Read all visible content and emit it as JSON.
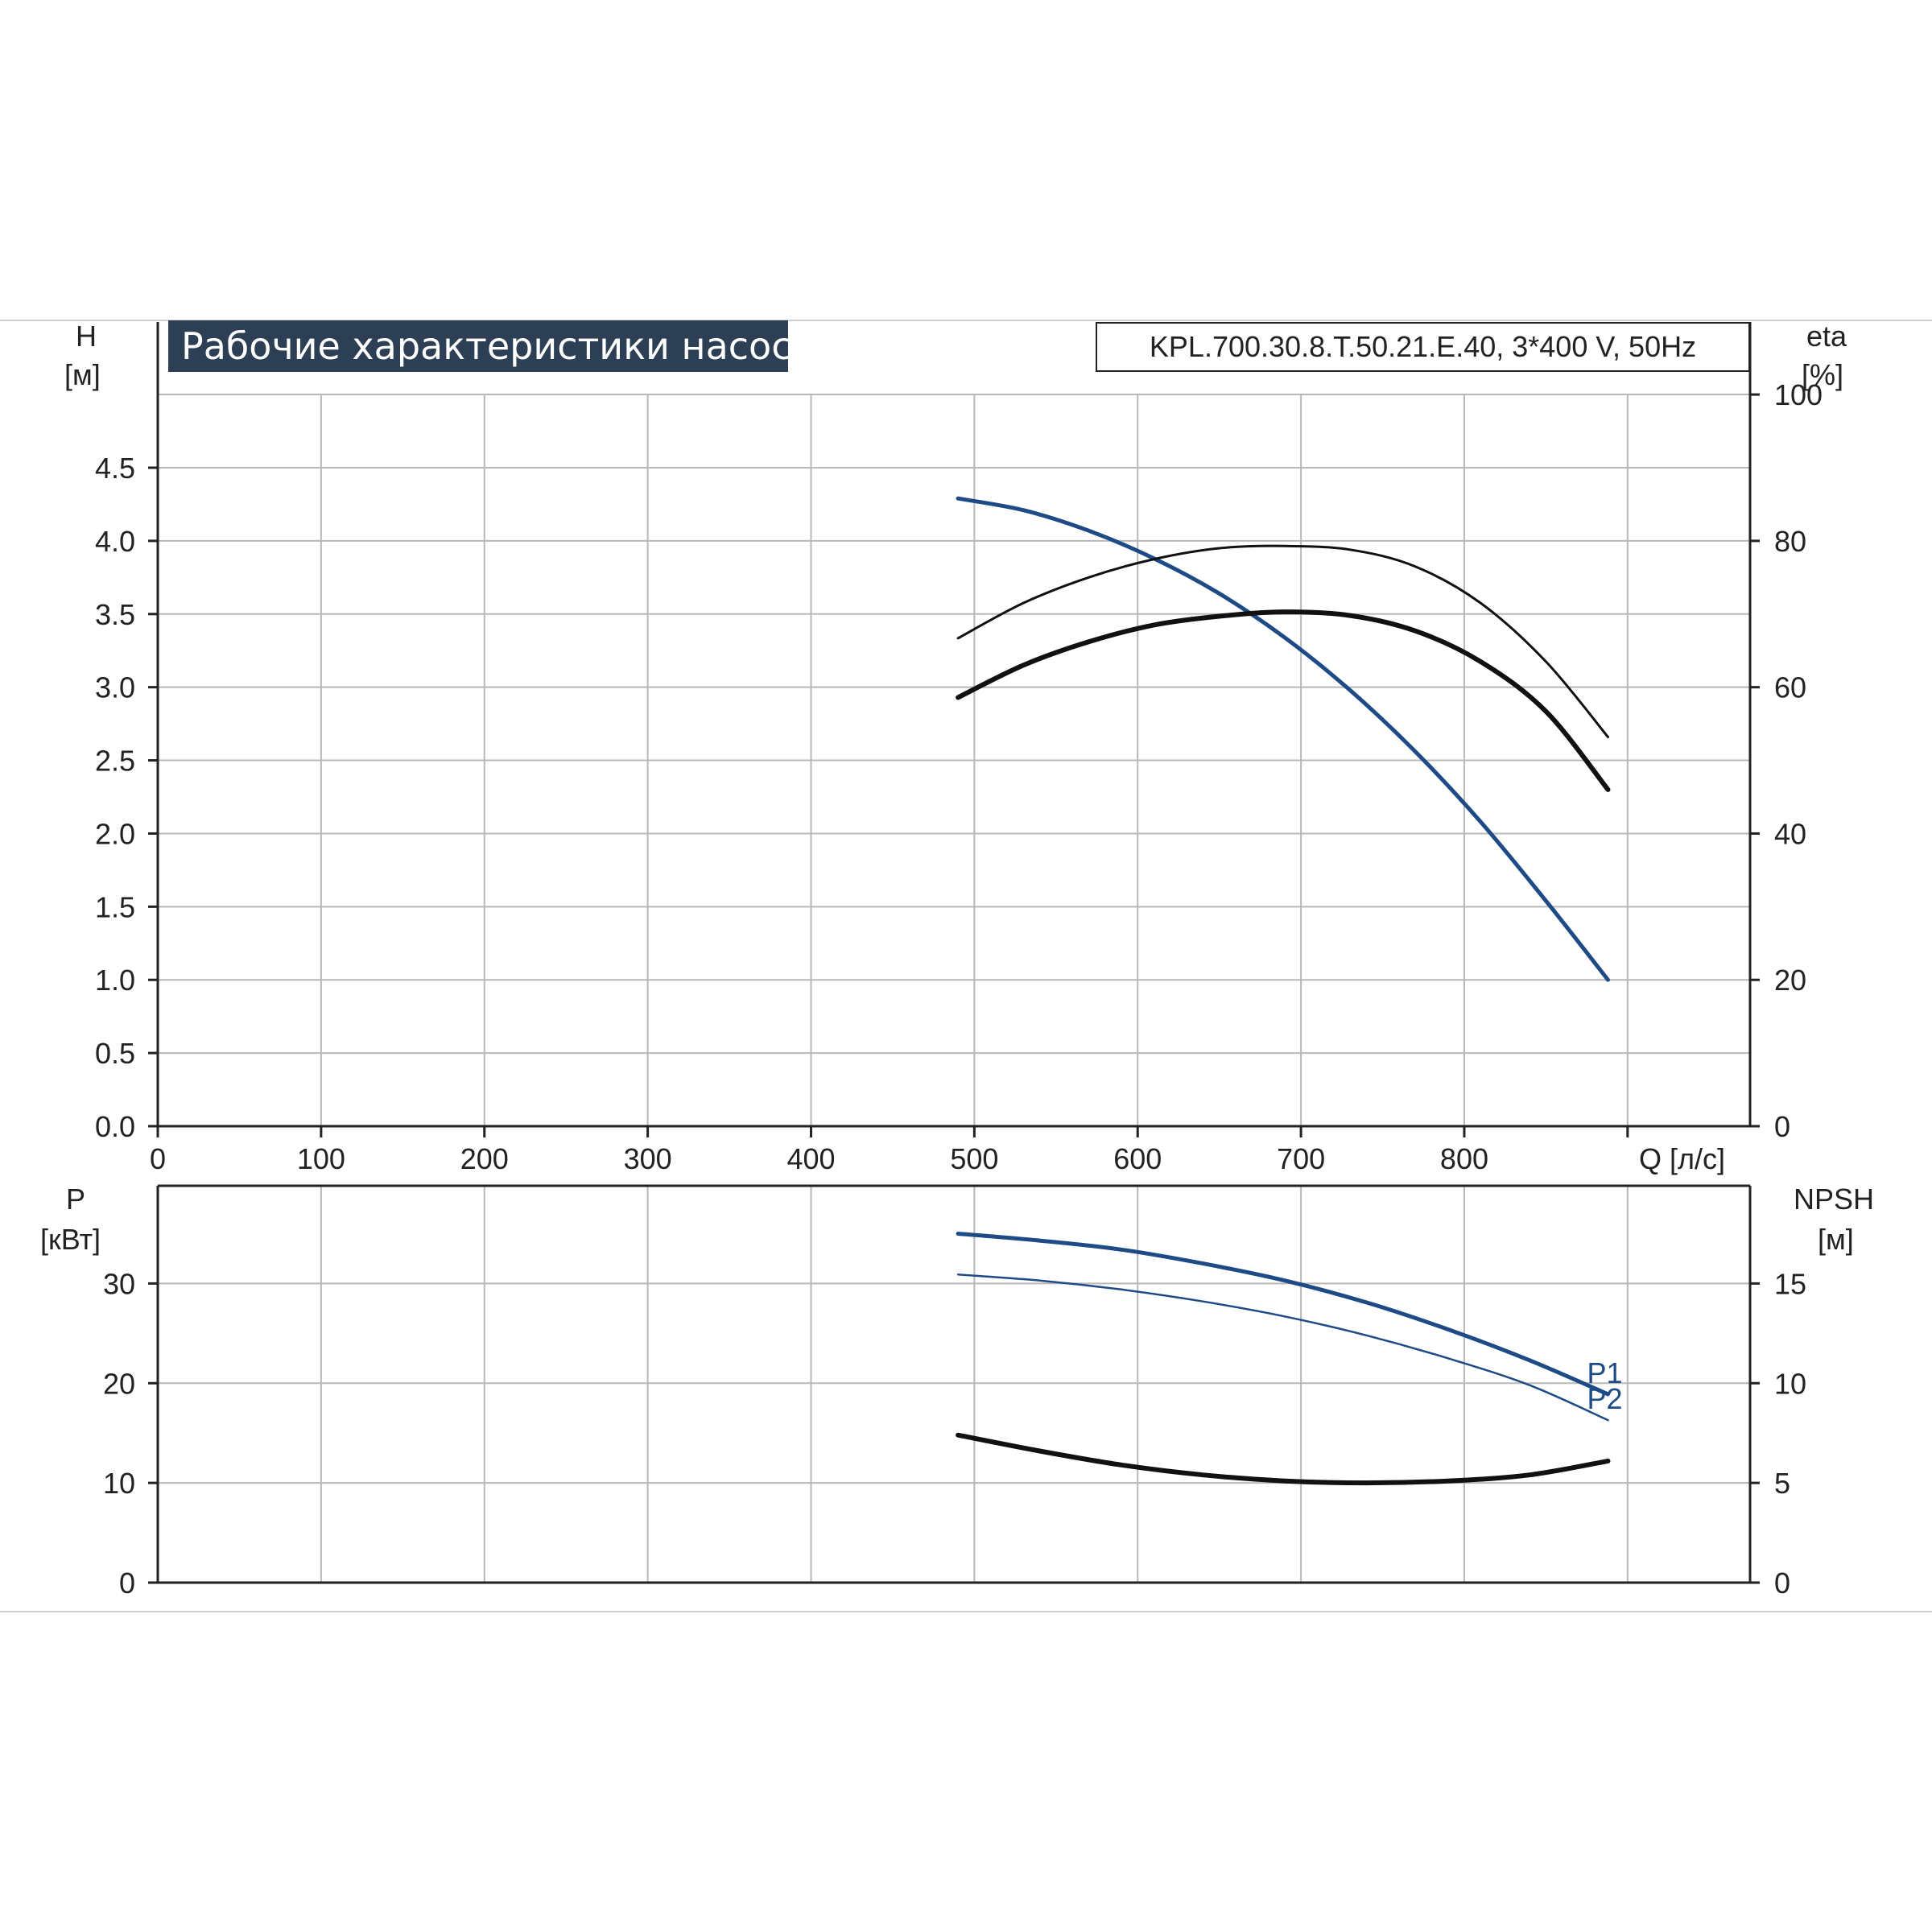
{
  "title": "Рабочие характеристики насоса",
  "model": "KPL.700.30.8.T.50.21.E.40, 3*400 V, 50Hz",
  "colors": {
    "blue": "#1e4b86",
    "black": "#111111",
    "grid": "#b8b8b8",
    "title_bg": "#2d3f55"
  },
  "chart_data": [
    {
      "type": "line",
      "xlabel": "Q [л/с]",
      "xlim": [
        0,
        975
      ],
      "x_ticks": [
        "0",
        "100",
        "200",
        "300",
        "400",
        "500",
        "600",
        "700",
        "800"
      ],
      "left_axis": {
        "label": "H",
        "unit": "[м]",
        "ylim": [
          0,
          5.0
        ],
        "ticks": [
          "0.0",
          "0.5",
          "1.0",
          "1.5",
          "2.0",
          "2.5",
          "3.0",
          "3.5",
          "4.0",
          "4.5"
        ]
      },
      "right_axis": {
        "label": "eta",
        "unit": "[%]",
        "ylim": [
          0,
          100
        ],
        "ticks": [
          "0",
          "20",
          "40",
          "60",
          "80",
          "100"
        ]
      },
      "series": [
        {
          "axis": "left",
          "color": "#1e4b86",
          "width": 5,
          "x": [
            490,
            530,
            570,
            610,
            650,
            690,
            730,
            770,
            810,
            850,
            888
          ],
          "y": [
            4.29,
            4.21,
            4.07,
            3.88,
            3.64,
            3.34,
            2.98,
            2.56,
            2.08,
            1.54,
            1.0
          ]
        },
        {
          "axis": "right",
          "color": "#111111",
          "width": 3,
          "x": [
            490,
            530,
            570,
            610,
            650,
            690,
            730,
            770,
            810,
            850,
            888
          ],
          "y": [
            66.7,
            71.5,
            75.0,
            77.5,
            79.0,
            79.3,
            78.8,
            76.5,
            71.5,
            63.5,
            53.2
          ]
        },
        {
          "axis": "right",
          "color": "#111111",
          "width": 6,
          "x": [
            490,
            530,
            570,
            610,
            650,
            690,
            730,
            770,
            810,
            850,
            888
          ],
          "y": [
            58.6,
            63.0,
            66.2,
            68.5,
            69.7,
            70.3,
            69.8,
            67.7,
            63.5,
            56.7,
            46.0
          ]
        }
      ]
    },
    {
      "type": "line",
      "xlim": [
        0,
        975
      ],
      "left_axis": {
        "label": "P",
        "unit": "[кВт]",
        "ylim": [
          0,
          39.8
        ],
        "ticks": [
          "0",
          "10",
          "20",
          "30"
        ]
      },
      "right_axis": {
        "label": "NPSH",
        "unit": "[м]",
        "ylim": [
          0,
          19.9
        ],
        "ticks": [
          "0",
          "5",
          "10",
          "15"
        ]
      },
      "series": [
        {
          "name": "P1",
          "axis": "left",
          "color": "#1e4b86",
          "width": 5,
          "x": [
            490,
            540,
            590,
            640,
            690,
            740,
            790,
            840,
            888
          ],
          "y": [
            35.0,
            34.3,
            33.4,
            32.0,
            30.3,
            28.1,
            25.4,
            22.3,
            18.9
          ]
        },
        {
          "name": "P2",
          "axis": "left",
          "color": "#1e4b86",
          "width": 2.5,
          "x": [
            490,
            540,
            590,
            640,
            690,
            740,
            790,
            840,
            888
          ],
          "y": [
            30.9,
            30.3,
            29.4,
            28.2,
            26.7,
            24.8,
            22.5,
            19.8,
            16.3
          ]
        },
        {
          "axis": "right",
          "color": "#111111",
          "width": 6,
          "x": [
            490,
            540,
            590,
            640,
            690,
            740,
            790,
            840,
            888
          ],
          "y": [
            7.4,
            6.6,
            5.9,
            5.4,
            5.1,
            5.0,
            5.1,
            5.4,
            6.1
          ]
        }
      ]
    }
  ]
}
